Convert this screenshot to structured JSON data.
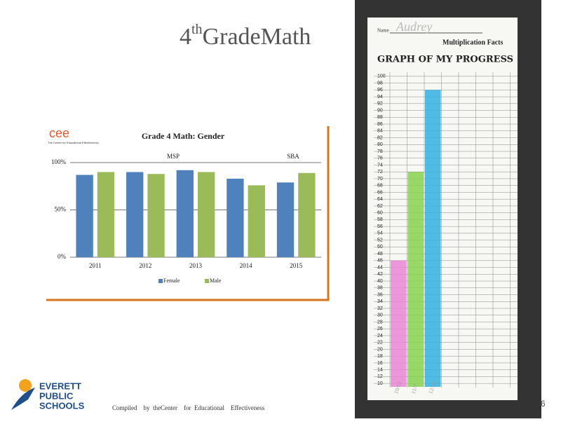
{
  "slide": {
    "title_main": "4",
    "title_sup": "th",
    "title_rest": "GradeMath",
    "logo_mark": "cee",
    "logo_caption": "The Center for Educational Effectiveness",
    "school": [
      "EVERETT",
      "PUBLIC",
      "SCHOOLS"
    ],
    "footer": "Compiled    by  theCenter    for  Educational    Effectiveness",
    "page_number": "6"
  },
  "worksheet": {
    "name_label": "Name",
    "name": "Audrey",
    "subject": "Multiplication Facts"
  },
  "chart_data": [
    {
      "type": "bar",
      "title": "Grade   4 Math:   Gender",
      "categories": [
        "2011",
        "2012",
        "2013",
        "2014",
        "2015"
      ],
      "series": [
        {
          "name": "Female",
          "color": "#4f81bd",
          "values": [
            87,
            90,
            92,
            83,
            79
          ]
        },
        {
          "name": "Male",
          "color": "#9bbb59",
          "values": [
            90,
            88,
            90,
            76,
            89
          ]
        }
      ],
      "annotations": [
        "MSP",
        "SBA"
      ],
      "ylim": [
        0,
        100
      ],
      "yticks": [
        {
          "value": 0,
          "label": "0%"
        },
        {
          "value": 50,
          "label": "50%"
        },
        {
          "value": 100,
          "label": "100%"
        }
      ],
      "grid": true,
      "legend": "bottom"
    },
    {
      "type": "bar",
      "title": "GRAPH OF MY PROGRESS",
      "categories": [
        "10/12",
        "11/7",
        "12/19"
      ],
      "values": [
        46,
        72,
        96
      ],
      "colors": [
        "#ea86d6",
        "#86d24e",
        "#33b2e3"
      ],
      "ylim": [
        9,
        101
      ],
      "yticks": [
        100,
        98,
        96,
        94,
        92,
        90,
        88,
        86,
        84,
        82,
        80,
        78,
        76,
        74,
        72,
        70,
        68,
        66,
        64,
        62,
        60,
        58,
        56,
        54,
        52,
        50,
        48,
        46,
        44,
        42,
        40,
        38,
        36,
        34,
        32,
        30,
        28,
        26,
        24,
        22,
        20,
        18,
        16,
        14,
        12,
        10
      ],
      "grid": true
    }
  ]
}
